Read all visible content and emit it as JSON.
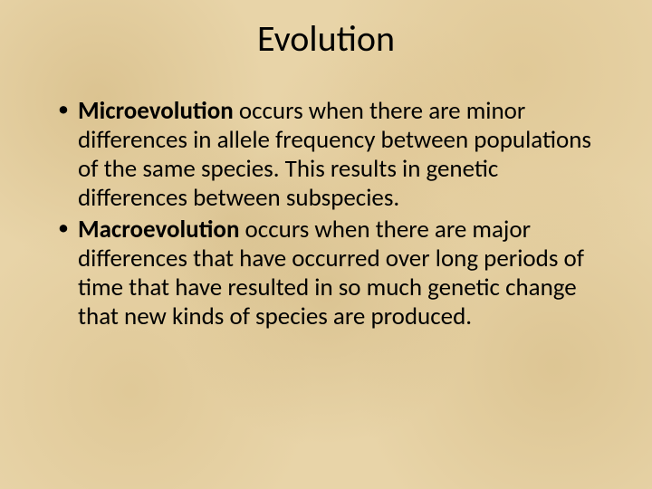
{
  "slide": {
    "title": "Evolution",
    "background_color": "#e8d4a8",
    "title_fontsize": 40,
    "body_fontsize": 27,
    "text_color": "#000000",
    "font_family": "Calibri",
    "bullets": [
      {
        "bold_lead": "Microevolution",
        "rest": " occurs when there are minor differences in allele frequency between populations of the same species.  This results in genetic differences between subspecies."
      },
      {
        "bold_lead": "Macroevolution",
        "rest": " occurs when there are major differences that have occurred over long periods of time that have resulted in so much genetic change that new kinds of species are produced."
      }
    ]
  }
}
